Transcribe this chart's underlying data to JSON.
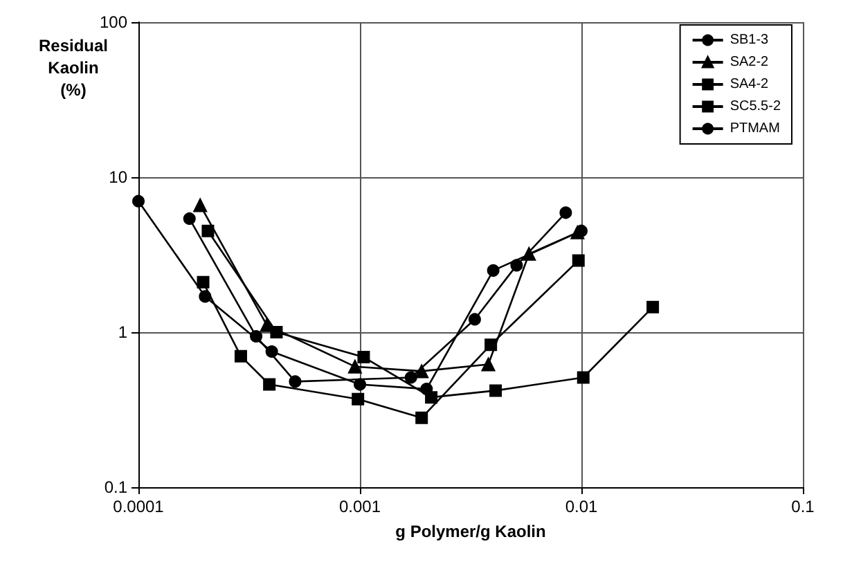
{
  "chart_data": {
    "type": "line",
    "xlabel": "g Polymer/g Kaolin",
    "ylabel": "Residual\nKaolin\n(%)",
    "log": "xy",
    "xlim": [
      0.0001,
      0.1
    ],
    "xticks": [
      0.0001,
      0.001,
      0.01,
      0.1
    ],
    "ylim": [
      0.1,
      100
    ],
    "yticks": [
      0.1,
      1,
      10,
      100
    ],
    "grid": true,
    "legend": "top right",
    "line_style": "solid",
    "series": [
      {
        "name": "SB1-3",
        "color": "#000000",
        "marker": "circle",
        "x": [
          0.00017,
          0.00034,
          0.00051,
          0.0017,
          0.0033,
          0.0051,
          0.0085
        ],
        "values": [
          5.4,
          0.94,
          0.48,
          0.51,
          1.21,
          2.7,
          5.9
        ]
      },
      {
        "name": "SA2-2",
        "color": "#000000",
        "marker": "triangle",
        "x": [
          0.00019,
          0.00038,
          0.00095,
          0.0019,
          0.0038,
          0.0058,
          0.0096
        ],
        "values": [
          6.6,
          1.11,
          0.6,
          0.56,
          0.62,
          3.2,
          4.4
        ]
      },
      {
        "name": "SA4-2",
        "color": "#000000",
        "marker": "square",
        "x": [
          0.000196,
          0.00029,
          0.00039,
          0.00098,
          0.0019,
          0.0039,
          0.0097
        ],
        "values": [
          2.1,
          0.7,
          0.46,
          0.37,
          0.28,
          0.83,
          2.9
        ]
      },
      {
        "name": "SC5.5-2",
        "color": "#000000",
        "marker": "square",
        "x": [
          0.000206,
          0.00042,
          0.00104,
          0.0021,
          0.0041,
          0.0102,
          0.021
        ],
        "values": [
          4.5,
          1.0,
          0.69,
          0.38,
          0.42,
          0.51,
          1.45
        ]
      },
      {
        "name": "PTMAM",
        "color": "#000000",
        "marker": "circle",
        "x": [
          0.0001,
          0.0002,
          0.0004,
          0.001,
          0.002,
          0.004,
          0.01
        ],
        "values": [
          7,
          1.7,
          0.75,
          0.46,
          0.43,
          2.5,
          4.5
        ]
      }
    ]
  }
}
